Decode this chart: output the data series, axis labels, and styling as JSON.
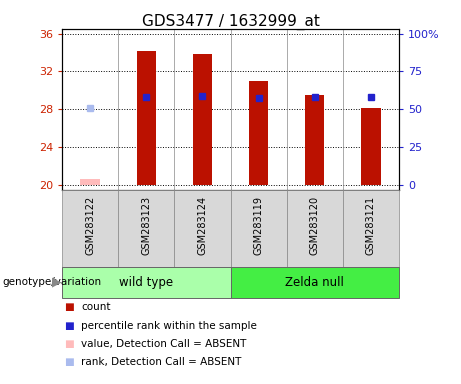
{
  "title": "GDS3477 / 1632999_at",
  "samples": [
    "GSM283122",
    "GSM283123",
    "GSM283124",
    "GSM283119",
    "GSM283120",
    "GSM283121"
  ],
  "count_values": [
    20.7,
    34.2,
    33.8,
    31.0,
    29.5,
    28.1
  ],
  "count_absent": [
    true,
    false,
    false,
    false,
    false,
    false
  ],
  "percentile_values": [
    28.1,
    29.35,
    29.4,
    29.2,
    29.3,
    29.3
  ],
  "percentile_absent": [
    true,
    false,
    false,
    false,
    false,
    false
  ],
  "ylim_left": [
    19.5,
    36.5
  ],
  "yticks_left": [
    20,
    24,
    28,
    32,
    36
  ],
  "ylim_right": [
    -3.125,
    103.125
  ],
  "yticks_right": [
    0,
    25,
    50,
    75,
    100
  ],
  "ytick_labels_right": [
    "0",
    "25",
    "50",
    "75",
    "100%"
  ],
  "bar_color_present": "#bb1100",
  "bar_color_absent": "#ffbbbb",
  "sq_color_present": "#2222cc",
  "sq_color_absent": "#aabbee",
  "bar_width": 0.35,
  "groups": [
    {
      "label": "wild type",
      "indices": [
        0,
        1,
        2
      ],
      "color": "#aaffaa"
    },
    {
      "label": "Zelda null",
      "indices": [
        3,
        4,
        5
      ],
      "color": "#44ee44"
    }
  ],
  "group_label": "genotype/variation",
  "ylabel_left_color": "#cc2200",
  "ylabel_right_color": "#2222cc",
  "fig_bg": "#ffffff",
  "plot_bg": "#ffffff",
  "sample_box_color": "#d8d8d8",
  "legend_items": [
    {
      "color": "#bb1100",
      "label": "count"
    },
    {
      "color": "#2222cc",
      "label": "percentile rank within the sample"
    },
    {
      "color": "#ffbbbb",
      "label": "value, Detection Call = ABSENT"
    },
    {
      "color": "#aabbee",
      "label": "rank, Detection Call = ABSENT"
    }
  ]
}
